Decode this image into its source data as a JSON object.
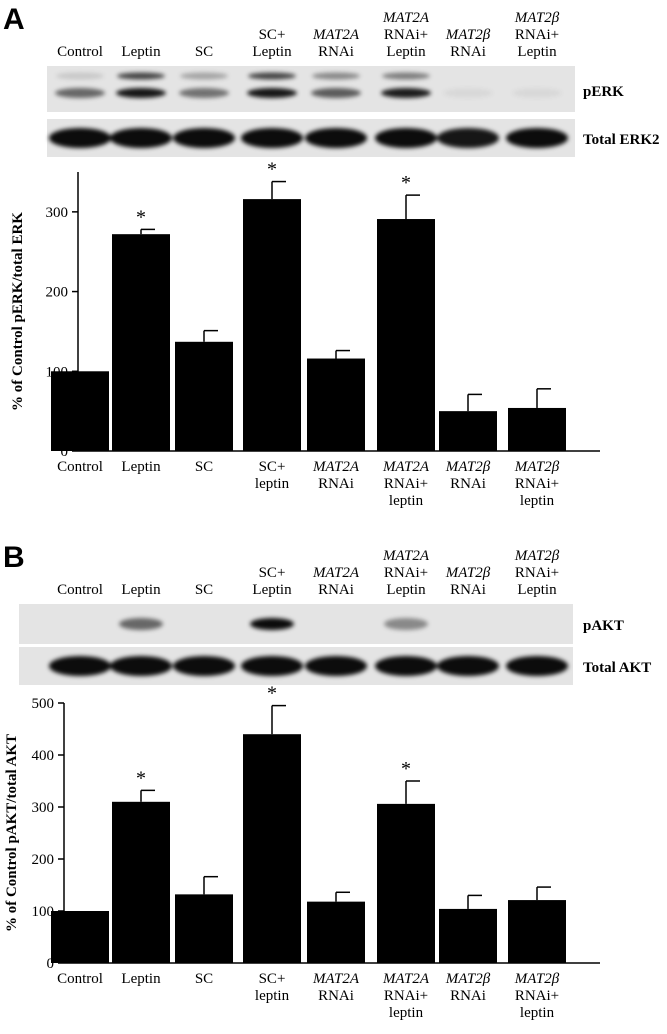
{
  "figure": {
    "panels": [
      {
        "letter": "A",
        "lane_labels": [
          [
            "Control"
          ],
          [
            "Leptin"
          ],
          [
            "SC"
          ],
          [
            "SC+",
            "Leptin"
          ],
          [
            {
              "i": "MAT2A"
            },
            "RNAi"
          ],
          [
            {
              "i": "MAT2A"
            },
            "RNAi+",
            "Leptin"
          ],
          [
            {
              "i": "MAT2β"
            },
            "RNAi"
          ],
          [
            {
              "i": "MAT2β"
            },
            "RNAi+",
            "Leptin"
          ]
        ],
        "blot_labels": [
          "pERK",
          "Total ERK2"
        ]
      },
      {
        "letter": "B",
        "lane_labels": [
          [
            "Control"
          ],
          [
            "Leptin"
          ],
          [
            "SC"
          ],
          [
            "SC+",
            "Leptin"
          ],
          [
            {
              "i": "MAT2A"
            },
            "RNAi"
          ],
          [
            {
              "i": "MAT2A"
            },
            "RNAi+",
            "Leptin"
          ],
          [
            {
              "i": "MAT2β"
            },
            "RNAi"
          ],
          [
            {
              "i": "MAT2β"
            },
            "RNAi+",
            "Leptin"
          ]
        ],
        "blot_labels": [
          "pAKT",
          "Total AKT"
        ]
      }
    ]
  },
  "chart_data": [
    {
      "type": "bar",
      "panel": "A",
      "categories": [
        [
          "Control"
        ],
        [
          "Leptin"
        ],
        [
          "SC"
        ],
        [
          "SC+",
          "leptin"
        ],
        [
          {
            "i": "MAT2A"
          },
          "RNAi"
        ],
        [
          {
            "i": "MAT2A"
          },
          "RNAi+",
          "leptin"
        ],
        [
          {
            "i": "MAT2β"
          },
          "RNAi"
        ],
        [
          {
            "i": "MAT2β"
          },
          "RNAi+",
          "leptin"
        ]
      ],
      "values": [
        100,
        272,
        137,
        316,
        116,
        291,
        50,
        54
      ],
      "errors": [
        0,
        6,
        14,
        22,
        10,
        30,
        21,
        24
      ],
      "significant": [
        false,
        true,
        false,
        true,
        false,
        true,
        false,
        false
      ],
      "significance_marker": "*",
      "ylabel": "% of Control pERK/total ERK",
      "ylim": [
        0,
        350
      ],
      "yticks": [
        0,
        100,
        200,
        300
      ],
      "bar_color": "#000000"
    },
    {
      "type": "bar",
      "panel": "B",
      "categories": [
        [
          "Control"
        ],
        [
          "Leptin"
        ],
        [
          "SC"
        ],
        [
          "SC+",
          "leptin"
        ],
        [
          {
            "i": "MAT2A"
          },
          "RNAi"
        ],
        [
          {
            "i": "MAT2A"
          },
          "RNAi+",
          "leptin"
        ],
        [
          {
            "i": "MAT2β"
          },
          "RNAi"
        ],
        [
          {
            "i": "MAT2β"
          },
          "RNAi+",
          "leptin"
        ]
      ],
      "values": [
        100,
        310,
        132,
        440,
        118,
        306,
        104,
        121
      ],
      "errors": [
        0,
        22,
        34,
        55,
        18,
        44,
        26,
        25
      ],
      "significant": [
        false,
        true,
        false,
        true,
        false,
        true,
        false,
        false
      ],
      "significance_marker": "*",
      "ylabel": "% of Control pAKT/total AKT",
      "ylim": [
        0,
        500
      ],
      "yticks": [
        0,
        100,
        200,
        300,
        400,
        500
      ],
      "bar_color": "#000000"
    }
  ]
}
